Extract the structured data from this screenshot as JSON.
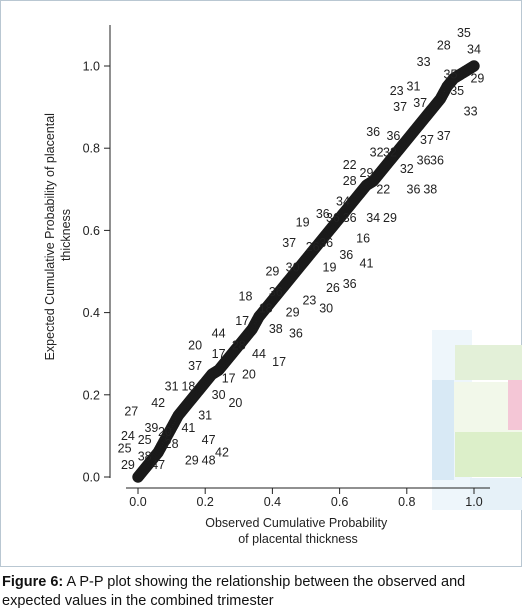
{
  "chart_data": {
    "type": "scatter",
    "title": "",
    "xlabel": "Observed Cumulative Probability of placental thickness",
    "xlabel_lines": [
      "Observed Cumulative Probability",
      "of placental thickness"
    ],
    "ylabel": "Expected Cumulative Probability of placental thickness",
    "ylabel_lines": [
      "Expected Cumulative Probability of placental",
      "thickness"
    ],
    "xlim": [
      0.0,
      1.0
    ],
    "ylim": [
      0.0,
      1.0
    ],
    "xticks": [
      "0.0",
      "0.2",
      "0.4",
      "0.6",
      "0.8",
      "1.0"
    ],
    "yticks": [
      "0.0",
      "0.2",
      "0.4",
      "0.6",
      "0.8",
      "1.0"
    ],
    "grid": false,
    "legend": "none",
    "marker_color": "#1a1a1a",
    "points": [
      {
        "x": 0.0,
        "y": 0.0
      },
      {
        "x": 0.02,
        "y": 0.02
      },
      {
        "x": 0.04,
        "y": 0.04
      },
      {
        "x": 0.06,
        "y": 0.06
      },
      {
        "x": 0.08,
        "y": 0.09
      },
      {
        "x": 0.1,
        "y": 0.12
      },
      {
        "x": 0.12,
        "y": 0.15
      },
      {
        "x": 0.14,
        "y": 0.17
      },
      {
        "x": 0.16,
        "y": 0.19
      },
      {
        "x": 0.18,
        "y": 0.21
      },
      {
        "x": 0.2,
        "y": 0.23
      },
      {
        "x": 0.22,
        "y": 0.25
      },
      {
        "x": 0.24,
        "y": 0.26
      },
      {
        "x": 0.26,
        "y": 0.28
      },
      {
        "x": 0.28,
        "y": 0.3
      },
      {
        "x": 0.3,
        "y": 0.32
      },
      {
        "x": 0.32,
        "y": 0.34
      },
      {
        "x": 0.34,
        "y": 0.36
      },
      {
        "x": 0.36,
        "y": 0.39
      },
      {
        "x": 0.38,
        "y": 0.41
      },
      {
        "x": 0.4,
        "y": 0.43
      },
      {
        "x": 0.42,
        "y": 0.45
      },
      {
        "x": 0.44,
        "y": 0.47
      },
      {
        "x": 0.46,
        "y": 0.49
      },
      {
        "x": 0.48,
        "y": 0.51
      },
      {
        "x": 0.5,
        "y": 0.53
      },
      {
        "x": 0.52,
        "y": 0.55
      },
      {
        "x": 0.54,
        "y": 0.57
      },
      {
        "x": 0.56,
        "y": 0.59
      },
      {
        "x": 0.58,
        "y": 0.61
      },
      {
        "x": 0.6,
        "y": 0.63
      },
      {
        "x": 0.62,
        "y": 0.65
      },
      {
        "x": 0.64,
        "y": 0.67
      },
      {
        "x": 0.66,
        "y": 0.69
      },
      {
        "x": 0.68,
        "y": 0.71
      },
      {
        "x": 0.7,
        "y": 0.72
      },
      {
        "x": 0.72,
        "y": 0.74
      },
      {
        "x": 0.74,
        "y": 0.76
      },
      {
        "x": 0.76,
        "y": 0.78
      },
      {
        "x": 0.78,
        "y": 0.8
      },
      {
        "x": 0.8,
        "y": 0.82
      },
      {
        "x": 0.82,
        "y": 0.84
      },
      {
        "x": 0.84,
        "y": 0.86
      },
      {
        "x": 0.86,
        "y": 0.88
      },
      {
        "x": 0.88,
        "y": 0.9
      },
      {
        "x": 0.9,
        "y": 0.92
      },
      {
        "x": 0.92,
        "y": 0.95
      },
      {
        "x": 0.94,
        "y": 0.97
      },
      {
        "x": 0.96,
        "y": 0.98
      },
      {
        "x": 0.98,
        "y": 0.99
      },
      {
        "x": 1.0,
        "y": 1.0
      }
    ],
    "annotations": [
      {
        "text": "35",
        "x": 0.97,
        "y": 1.07
      },
      {
        "text": "28",
        "x": 0.91,
        "y": 1.04
      },
      {
        "text": "34",
        "x": 1.0,
        "y": 1.03
      },
      {
        "text": "33",
        "x": 0.85,
        "y": 1.0
      },
      {
        "text": "35",
        "x": 0.93,
        "y": 0.97
      },
      {
        "text": "29",
        "x": 1.01,
        "y": 0.96
      },
      {
        "text": "23",
        "x": 0.77,
        "y": 0.93
      },
      {
        "text": "31",
        "x": 0.82,
        "y": 0.94
      },
      {
        "text": "35",
        "x": 0.95,
        "y": 0.93
      },
      {
        "text": "37",
        "x": 0.78,
        "y": 0.89
      },
      {
        "text": "37",
        "x": 0.84,
        "y": 0.9
      },
      {
        "text": "33",
        "x": 0.99,
        "y": 0.88
      },
      {
        "text": "36",
        "x": 0.7,
        "y": 0.83
      },
      {
        "text": "36",
        "x": 0.76,
        "y": 0.82
      },
      {
        "text": "37",
        "x": 0.86,
        "y": 0.81
      },
      {
        "text": "37",
        "x": 0.91,
        "y": 0.82
      },
      {
        "text": "32",
        "x": 0.71,
        "y": 0.78
      },
      {
        "text": "32",
        "x": 0.75,
        "y": 0.78
      },
      {
        "text": "36",
        "x": 0.85,
        "y": 0.76
      },
      {
        "text": "36",
        "x": 0.89,
        "y": 0.76
      },
      {
        "text": "22",
        "x": 0.63,
        "y": 0.75
      },
      {
        "text": "29",
        "x": 0.68,
        "y": 0.73
      },
      {
        "text": "32",
        "x": 0.8,
        "y": 0.74
      },
      {
        "text": "28",
        "x": 0.63,
        "y": 0.71
      },
      {
        "text": "22",
        "x": 0.73,
        "y": 0.69
      },
      {
        "text": "36",
        "x": 0.82,
        "y": 0.69
      },
      {
        "text": "38",
        "x": 0.87,
        "y": 0.69
      },
      {
        "text": "34",
        "x": 0.61,
        "y": 0.66
      },
      {
        "text": "19",
        "x": 0.49,
        "y": 0.61
      },
      {
        "text": "36",
        "x": 0.55,
        "y": 0.63
      },
      {
        "text": "36",
        "x": 0.58,
        "y": 0.62
      },
      {
        "text": "36",
        "x": 0.63,
        "y": 0.62
      },
      {
        "text": "34",
        "x": 0.7,
        "y": 0.62
      },
      {
        "text": "29",
        "x": 0.75,
        "y": 0.62
      },
      {
        "text": "37",
        "x": 0.45,
        "y": 0.56
      },
      {
        "text": "26",
        "x": 0.52,
        "y": 0.55
      },
      {
        "text": "36",
        "x": 0.56,
        "y": 0.56
      },
      {
        "text": "16",
        "x": 0.67,
        "y": 0.57
      },
      {
        "text": "36",
        "x": 0.62,
        "y": 0.53
      },
      {
        "text": "41",
        "x": 0.68,
        "y": 0.51
      },
      {
        "text": "29",
        "x": 0.4,
        "y": 0.49
      },
      {
        "text": "30",
        "x": 0.46,
        "y": 0.5
      },
      {
        "text": "19",
        "x": 0.57,
        "y": 0.5
      },
      {
        "text": "36",
        "x": 0.63,
        "y": 0.46
      },
      {
        "text": "26",
        "x": 0.58,
        "y": 0.45
      },
      {
        "text": "18",
        "x": 0.32,
        "y": 0.43
      },
      {
        "text": "36",
        "x": 0.41,
        "y": 0.44
      },
      {
        "text": "23",
        "x": 0.51,
        "y": 0.42
      },
      {
        "text": "18",
        "x": 0.38,
        "y": 0.4
      },
      {
        "text": "29",
        "x": 0.46,
        "y": 0.39
      },
      {
        "text": "30",
        "x": 0.56,
        "y": 0.4
      },
      {
        "text": "17",
        "x": 0.31,
        "y": 0.37
      },
      {
        "text": "38",
        "x": 0.41,
        "y": 0.35
      },
      {
        "text": "36",
        "x": 0.47,
        "y": 0.34
      },
      {
        "text": "44",
        "x": 0.24,
        "y": 0.34
      },
      {
        "text": "20",
        "x": 0.17,
        "y": 0.31
      },
      {
        "text": "28",
        "x": 0.3,
        "y": 0.31
      },
      {
        "text": "44",
        "x": 0.36,
        "y": 0.29
      },
      {
        "text": "17",
        "x": 0.24,
        "y": 0.29
      },
      {
        "text": "17",
        "x": 0.42,
        "y": 0.27
      },
      {
        "text": "37",
        "x": 0.17,
        "y": 0.26
      },
      {
        "text": "17",
        "x": 0.27,
        "y": 0.23
      },
      {
        "text": "20",
        "x": 0.33,
        "y": 0.24
      },
      {
        "text": "31",
        "x": 0.1,
        "y": 0.21
      },
      {
        "text": "18",
        "x": 0.15,
        "y": 0.21
      },
      {
        "text": "30",
        "x": 0.24,
        "y": 0.19
      },
      {
        "text": "20",
        "x": 0.29,
        "y": 0.17
      },
      {
        "text": "42",
        "x": 0.06,
        "y": 0.17
      },
      {
        "text": "27",
        "x": -0.02,
        "y": 0.15
      },
      {
        "text": "31",
        "x": 0.2,
        "y": 0.14
      },
      {
        "text": "39",
        "x": 0.04,
        "y": 0.11
      },
      {
        "text": "20",
        "x": 0.08,
        "y": 0.1
      },
      {
        "text": "41",
        "x": 0.15,
        "y": 0.11
      },
      {
        "text": "24",
        "x": -0.03,
        "y": 0.09
      },
      {
        "text": "25",
        "x": 0.02,
        "y": 0.08
      },
      {
        "text": "28",
        "x": 0.1,
        "y": 0.07
      },
      {
        "text": "47",
        "x": 0.21,
        "y": 0.08
      },
      {
        "text": "42",
        "x": 0.25,
        "y": 0.05
      },
      {
        "text": "25",
        "x": -0.04,
        "y": 0.06
      },
      {
        "text": "38",
        "x": 0.02,
        "y": 0.04
      },
      {
        "text": "29",
        "x": -0.03,
        "y": 0.02
      },
      {
        "text": "47",
        "x": 0.06,
        "y": 0.02
      },
      {
        "text": "29",
        "x": 0.16,
        "y": 0.03
      },
      {
        "text": "48",
        "x": 0.21,
        "y": 0.03
      }
    ]
  },
  "caption": {
    "label": "Figure 6:",
    "text": " A P-P plot showing the relationship between the observed and expected values in the combined trimester"
  }
}
